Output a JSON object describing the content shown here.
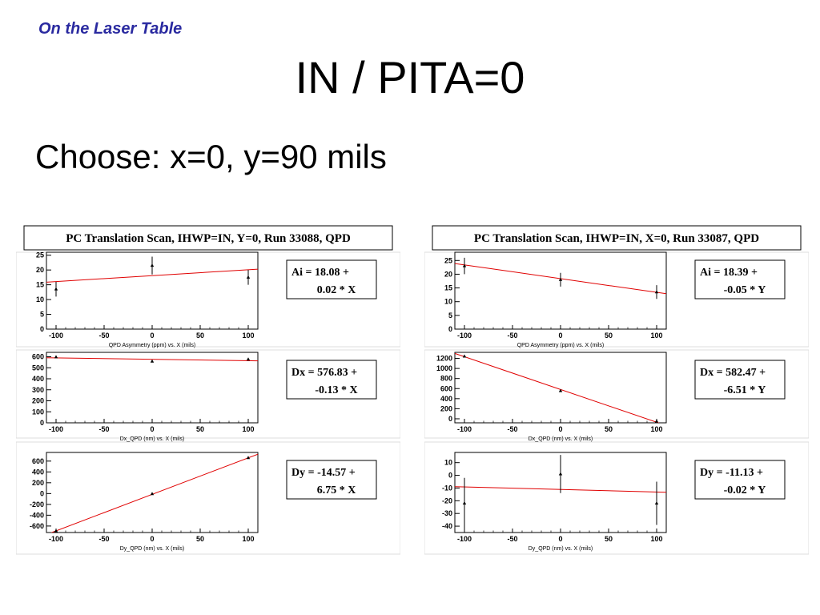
{
  "header": {
    "label": "On the Laser Table"
  },
  "slide": {
    "title": "IN / PITA=0",
    "subtitle": "Choose: x=0, y=90 mils"
  },
  "chart_data": [
    {
      "type": "scatter",
      "title": "PC Translation Scan, IHWP=IN, Y=0, Run 33088, QPD",
      "subplots": [
        {
          "xlabel": "QPD Asymmetry (ppm) vs. X (mils)",
          "xlim": [
            -110,
            110
          ],
          "ylim": [
            0,
            26
          ],
          "xticks": [
            -100,
            -50,
            0,
            50,
            100
          ],
          "yticks": [
            0,
            5,
            10,
            15,
            20,
            25
          ],
          "points": [
            {
              "x": -100,
              "y": 13.5,
              "err": 2.5
            },
            {
              "x": 0,
              "y": 21.5,
              "err": 3.0
            },
            {
              "x": 100,
              "y": 17.5,
              "err": 2.5
            }
          ],
          "fit": {
            "intercept": 18.08,
            "slope": 0.02
          },
          "fit_lines": [
            "Ai =   18.08 +",
            "0.02 * X"
          ]
        },
        {
          "xlabel": "Dx_QPD (nm) vs. X (mils)",
          "xlim": [
            -110,
            110
          ],
          "ylim": [
            0,
            640
          ],
          "xticks": [
            -100,
            -50,
            0,
            50,
            100
          ],
          "yticks": [
            0,
            100,
            200,
            300,
            400,
            500,
            600
          ],
          "points": [
            {
              "x": -100,
              "y": 597,
              "err": 8
            },
            {
              "x": 0,
              "y": 558,
              "err": 10
            },
            {
              "x": 100,
              "y": 576,
              "err": 10
            }
          ],
          "fit": {
            "intercept": 576.83,
            "slope": -0.13
          },
          "fit_lines": [
            "Dx =  576.83 +",
            "-0.13 * X"
          ]
        },
        {
          "xlabel": "Dy_QPD (nm) vs. X (mils)",
          "xlim": [
            -110,
            110
          ],
          "ylim": [
            -720,
            760
          ],
          "xticks": [
            -100,
            -50,
            0,
            50,
            100
          ],
          "yticks": [
            -600,
            -400,
            -200,
            0,
            200,
            400,
            600
          ],
          "points": [
            {
              "x": -100,
              "y": -690,
              "err": 10
            },
            {
              "x": 0,
              "y": -5,
              "err": 10
            },
            {
              "x": 100,
              "y": 660,
              "err": 10
            }
          ],
          "fit": {
            "intercept": -14.57,
            "slope": 6.75
          },
          "fit_lines": [
            "Dy =  -14.57 +",
            "6.75 * X"
          ]
        }
      ]
    },
    {
      "type": "scatter",
      "title": "PC Translation Scan, IHWP=IN, X=0, Run 33087, QPD",
      "subplots": [
        {
          "xlabel": "QPD Asymmetry (ppm) vs. X (mils)",
          "xlim": [
            -110,
            110
          ],
          "ylim": [
            0,
            28
          ],
          "xticks": [
            -100,
            -50,
            0,
            50,
            100
          ],
          "yticks": [
            0,
            5,
            10,
            15,
            20,
            25
          ],
          "points": [
            {
              "x": -100,
              "y": 23,
              "err": 3.0
            },
            {
              "x": 0,
              "y": 18,
              "err": 2.5
            },
            {
              "x": 100,
              "y": 13.5,
              "err": 2.5
            }
          ],
          "fit": {
            "intercept": 18.39,
            "slope": -0.05
          },
          "fit_lines": [
            "Ai =   18.39 +",
            "-0.05 * Y"
          ]
        },
        {
          "xlabel": "Dx_QPD (nm) vs. X (mils)",
          "xlim": [
            -110,
            110
          ],
          "ylim": [
            -80,
            1320
          ],
          "xticks": [
            -100,
            -50,
            0,
            50,
            100
          ],
          "yticks": [
            0,
            200,
            400,
            600,
            800,
            1000,
            1200
          ],
          "points": [
            {
              "x": -100,
              "y": 1240,
              "err": 10
            },
            {
              "x": 0,
              "y": 555,
              "err": 10
            },
            {
              "x": 100,
              "y": -50,
              "err": 10
            }
          ],
          "fit": {
            "intercept": 582.47,
            "slope": -6.51
          },
          "fit_lines": [
            "Dx =  582.47 +",
            "-6.51 * Y"
          ]
        },
        {
          "xlabel": "Dy_QPD (nm) vs. X (mils)",
          "xlim": [
            -110,
            110
          ],
          "ylim": [
            -45,
            18
          ],
          "xticks": [
            -100,
            -50,
            0,
            50,
            100
          ],
          "yticks": [
            -40,
            -30,
            -20,
            -10,
            0,
            10
          ],
          "points": [
            {
              "x": -100,
              "y": -22,
              "err": 20
            },
            {
              "x": 0,
              "y": 1,
              "err": 15
            },
            {
              "x": 100,
              "y": -22,
              "err": 17
            }
          ],
          "fit": {
            "intercept": -11.13,
            "slope": -0.02
          },
          "fit_lines": [
            "Dy =  -11.13 +",
            "-0.02 * Y"
          ]
        }
      ]
    }
  ]
}
